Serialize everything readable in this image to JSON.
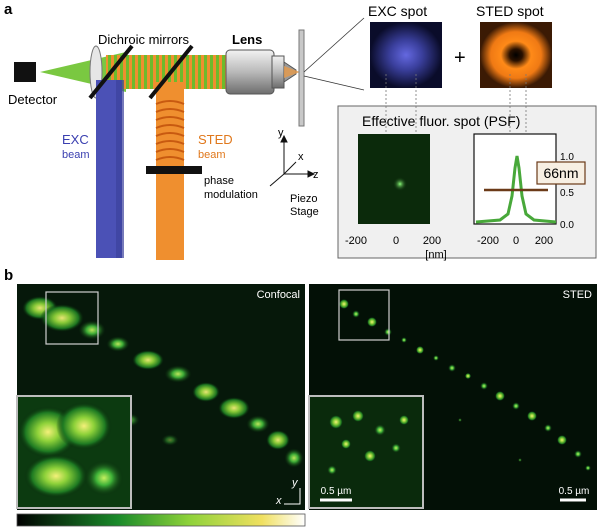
{
  "panel_a": {
    "label": "a",
    "detector": "Detector",
    "dichroic": "Dichroic mirrors",
    "lens": "Lens",
    "exc_beam": [
      "EXC",
      "beam"
    ],
    "sted_beam": [
      "STED",
      "beam"
    ],
    "phase": [
      "phase",
      "modulation"
    ],
    "piezo": [
      "Piezo",
      "Stage"
    ],
    "axes": {
      "x": "x",
      "y": "y",
      "z": "z"
    },
    "exc_spot": "EXC spot",
    "sted_spot": "STED spot",
    "plus": "+",
    "psf_title": "Effective fluor. spot (PSF)",
    "fwhm": "66nm",
    "xticks": [
      "-200",
      "0",
      "200"
    ],
    "unit": "[nm]",
    "yticks": [
      "1.0",
      "0.5",
      "0.0"
    ]
  },
  "panel_b": {
    "label": "b",
    "confocal": "Confocal",
    "sted": "STED",
    "scale_left": "0.5 µm",
    "scale_right": "0.5 µm",
    "axis_y": "y",
    "axis_x": "x"
  },
  "colors": {
    "exc": "#4a4fb5",
    "sted": "#e9812a",
    "fluor": "#39c04a",
    "laser": "#6fc22e"
  }
}
